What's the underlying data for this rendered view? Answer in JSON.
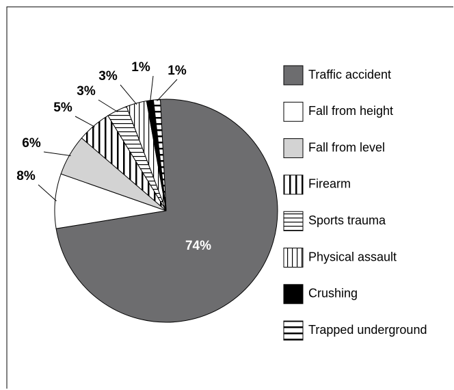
{
  "chart_data": {
    "type": "pie",
    "categories": [
      "Traffic accident",
      "Fall from height",
      "Fall from level",
      "Firearm",
      "Sports trauma",
      "Physical assault",
      "Crushing",
      "Trapped underground"
    ],
    "values": [
      74,
      8,
      6,
      5,
      3,
      3,
      1,
      1
    ],
    "value_labels": [
      "74%",
      "8%",
      "6%",
      "5%",
      "3%",
      "3%",
      "1%",
      "1%"
    ],
    "fills": [
      "#6d6d6f",
      "#ffffff",
      "#d3d3d3",
      "vertical-wide",
      "horizontal",
      "vertical",
      "#000000",
      "horizontal-wide"
    ],
    "legend": "right"
  }
}
